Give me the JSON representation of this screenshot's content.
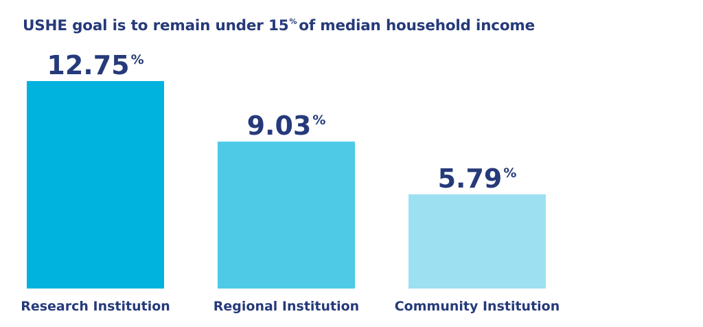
{
  "chart_data": {
    "type": "bar",
    "title": {
      "before": "USHE goal is to remain under 15",
      "superscript": "%",
      "after": "of median household income"
    },
    "categories": [
      "Research Institution",
      "Regional Institution",
      "Community Institution"
    ],
    "values": [
      12.75,
      9.03,
      5.79
    ],
    "value_labels": [
      "12.75",
      "9.03",
      "5.79"
    ],
    "value_suffix": "%",
    "bar_colors": [
      "#00b2de",
      "#4ecae7",
      "#9de0f1"
    ],
    "ylim": [
      0,
      12.75
    ],
    "grid": false,
    "xlabel": "",
    "ylabel": ""
  }
}
